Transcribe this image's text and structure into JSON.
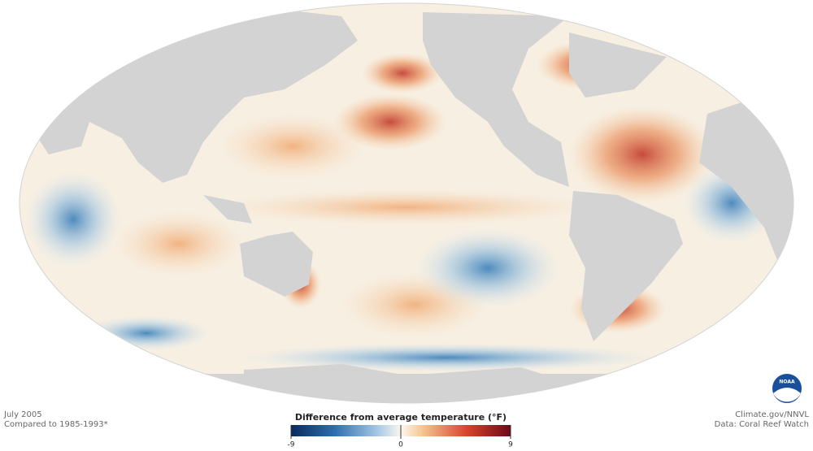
{
  "header": {
    "date": "July 2005",
    "baseline": "Compared to 1985-1993*"
  },
  "legend": {
    "title": "Difference from average temperature (°F)",
    "range": [
      -9,
      9
    ],
    "ticks": [
      -9,
      0,
      9
    ]
  },
  "credits": {
    "source": "Climate.gov/NNVL",
    "data": "Data: Coral Reef Watch",
    "logo": "NOAA"
  }
}
